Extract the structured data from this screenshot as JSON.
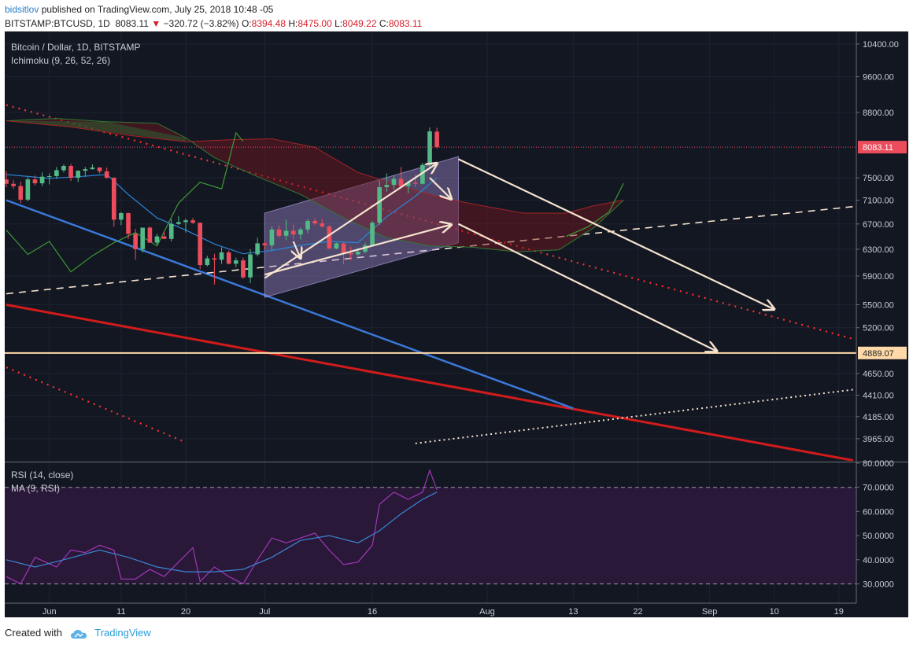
{
  "header": {
    "user": "bidsitlov",
    "published": "published on TradingView.com, July 25, 2018 10:48 -05",
    "symbol": "BITSTAMP:BTCUSD, 1D",
    "last": "8083.11",
    "change_arrow": "▼",
    "change": "−320.72 (−3.82%)",
    "o_label": "O:",
    "o_value": "8394.48",
    "h_label": "H:",
    "h_value": "8475.00",
    "l_label": "L:",
    "l_value": "8049.22",
    "c_label": "C:",
    "c_value": "8083.11"
  },
  "legend": {
    "main": "Bitcoin / Dollar, 1D, BITSTAMP",
    "indicator": "Ichimoku (9, 26, 52, 26)",
    "rsi": "RSI (14, close)",
    "ma": "MA (9, RSI)"
  },
  "footer": {
    "created": "Created with",
    "brand": "TradingView"
  },
  "colors": {
    "background": "#131722",
    "bull": "#53b987",
    "bear": "#eb4d5c",
    "rsi": "#a037b5",
    "ma": "#3a86d4",
    "horizontal_level": "#ffd9a8",
    "blue_trend": "#3b78d8",
    "red_trend": "#d11b1b"
  },
  "chart_data": [
    {
      "type": "candlestick",
      "title": "Bitcoin / Dollar, 1D, BITSTAMP",
      "y_scale": "log",
      "ylim": [
        3800,
        10600
      ],
      "y_ticks": [
        "10400.00",
        "9600.00",
        "8800.00",
        "7500.00",
        "7100.00",
        "6700.00",
        "6300.00",
        "5900.00",
        "5500.00",
        "5200.00",
        "4650.00",
        "4410.00",
        "4185.00",
        "3965.00"
      ],
      "x_ticks": [
        {
          "label": "Jun",
          "date": "2018-06-01"
        },
        {
          "label": "11",
          "date": "2018-06-11"
        },
        {
          "label": "20",
          "date": "2018-06-20"
        },
        {
          "label": "Jul",
          "date": "2018-07-01"
        },
        {
          "label": "16",
          "date": "2018-07-16"
        },
        {
          "label": "Aug",
          "date": "2018-08-01"
        },
        {
          "label": "13",
          "date": "2018-08-13"
        },
        {
          "label": "22",
          "date": "2018-08-22"
        },
        {
          "label": "Sep",
          "date": "2018-09-01"
        },
        {
          "label": "10",
          "date": "2018-09-10"
        },
        {
          "label": "19",
          "date": "2018-09-19"
        }
      ],
      "xlim": [
        "2018-05-26",
        "2018-09-21"
      ],
      "price_labels": [
        {
          "label": "8083.11",
          "value": 8083.11,
          "color": "#eb4d5c"
        },
        {
          "label": "4889.07",
          "value": 4889.07,
          "color": "#ffd9a8"
        }
      ],
      "horizontal_level": 4889.07,
      "candles": [
        {
          "date": "2018-05-26",
          "o": 7470,
          "h": 7620,
          "l": 7330,
          "c": 7390
        },
        {
          "date": "2018-05-27",
          "o": 7390,
          "h": 7460,
          "l": 7300,
          "c": 7350
        },
        {
          "date": "2018-05-28",
          "o": 7350,
          "h": 7430,
          "l": 7050,
          "c": 7110
        },
        {
          "date": "2018-05-29",
          "o": 7110,
          "h": 7510,
          "l": 7080,
          "c": 7470
        },
        {
          "date": "2018-05-30",
          "o": 7470,
          "h": 7540,
          "l": 7360,
          "c": 7400
        },
        {
          "date": "2018-05-31",
          "o": 7400,
          "h": 7600,
          "l": 7350,
          "c": 7520
        },
        {
          "date": "2018-06-01",
          "o": 7520,
          "h": 7580,
          "l": 7380,
          "c": 7530
        },
        {
          "date": "2018-06-02",
          "o": 7530,
          "h": 7700,
          "l": 7480,
          "c": 7640
        },
        {
          "date": "2018-06-03",
          "o": 7640,
          "h": 7750,
          "l": 7600,
          "c": 7720
        },
        {
          "date": "2018-06-04",
          "o": 7720,
          "h": 7760,
          "l": 7440,
          "c": 7500
        },
        {
          "date": "2018-06-05",
          "o": 7500,
          "h": 7640,
          "l": 7420,
          "c": 7630
        },
        {
          "date": "2018-06-06",
          "o": 7630,
          "h": 7700,
          "l": 7520,
          "c": 7660
        },
        {
          "date": "2018-06-07",
          "o": 7660,
          "h": 7750,
          "l": 7650,
          "c": 7690
        },
        {
          "date": "2018-06-08",
          "o": 7690,
          "h": 7700,
          "l": 7580,
          "c": 7620
        },
        {
          "date": "2018-06-09",
          "o": 7620,
          "h": 7690,
          "l": 7480,
          "c": 7500
        },
        {
          "date": "2018-06-10",
          "o": 7500,
          "h": 7510,
          "l": 6650,
          "c": 6770
        },
        {
          "date": "2018-06-11",
          "o": 6770,
          "h": 6900,
          "l": 6680,
          "c": 6880
        },
        {
          "date": "2018-06-12",
          "o": 6880,
          "h": 6890,
          "l": 6460,
          "c": 6540
        },
        {
          "date": "2018-06-13",
          "o": 6540,
          "h": 6620,
          "l": 6140,
          "c": 6300
        },
        {
          "date": "2018-06-14",
          "o": 6300,
          "h": 6640,
          "l": 6250,
          "c": 6640
        },
        {
          "date": "2018-06-15",
          "o": 6640,
          "h": 6660,
          "l": 6400,
          "c": 6400
        },
        {
          "date": "2018-06-16",
          "o": 6400,
          "h": 6540,
          "l": 6370,
          "c": 6500
        },
        {
          "date": "2018-06-17",
          "o": 6500,
          "h": 6580,
          "l": 6460,
          "c": 6460
        },
        {
          "date": "2018-06-18",
          "o": 6460,
          "h": 6780,
          "l": 6420,
          "c": 6700
        },
        {
          "date": "2018-06-19",
          "o": 6700,
          "h": 6830,
          "l": 6680,
          "c": 6730
        },
        {
          "date": "2018-06-20",
          "o": 6730,
          "h": 6790,
          "l": 6560,
          "c": 6760
        },
        {
          "date": "2018-06-21",
          "o": 6760,
          "h": 6800,
          "l": 6700,
          "c": 6720
        },
        {
          "date": "2018-06-22",
          "o": 6720,
          "h": 6720,
          "l": 6000,
          "c": 6060
        },
        {
          "date": "2018-06-23",
          "o": 6060,
          "h": 6200,
          "l": 6040,
          "c": 6160
        },
        {
          "date": "2018-06-24",
          "o": 6160,
          "h": 6230,
          "l": 5780,
          "c": 6140
        },
        {
          "date": "2018-06-25",
          "o": 6140,
          "h": 6330,
          "l": 6080,
          "c": 6250
        },
        {
          "date": "2018-06-26",
          "o": 6250,
          "h": 6280,
          "l": 6070,
          "c": 6080
        },
        {
          "date": "2018-06-27",
          "o": 6080,
          "h": 6170,
          "l": 6030,
          "c": 6130
        },
        {
          "date": "2018-06-28",
          "o": 6130,
          "h": 6170,
          "l": 5860,
          "c": 5880
        },
        {
          "date": "2018-06-29",
          "o": 5880,
          "h": 6300,
          "l": 5800,
          "c": 6220
        },
        {
          "date": "2018-06-30",
          "o": 6220,
          "h": 6480,
          "l": 6190,
          "c": 6390
        },
        {
          "date": "2018-07-01",
          "o": 6390,
          "h": 6420,
          "l": 6290,
          "c": 6360
        },
        {
          "date": "2018-07-02",
          "o": 6360,
          "h": 6660,
          "l": 6290,
          "c": 6610
        },
        {
          "date": "2018-07-03",
          "o": 6610,
          "h": 6680,
          "l": 6480,
          "c": 6510
        },
        {
          "date": "2018-07-04",
          "o": 6510,
          "h": 6770,
          "l": 6440,
          "c": 6590
        },
        {
          "date": "2018-07-05",
          "o": 6590,
          "h": 6690,
          "l": 6450,
          "c": 6530
        },
        {
          "date": "2018-07-06",
          "o": 6530,
          "h": 6640,
          "l": 6450,
          "c": 6610
        },
        {
          "date": "2018-07-07",
          "o": 6610,
          "h": 6780,
          "l": 6550,
          "c": 6750
        },
        {
          "date": "2018-07-08",
          "o": 6750,
          "h": 6800,
          "l": 6680,
          "c": 6710
        },
        {
          "date": "2018-07-09",
          "o": 6710,
          "h": 6790,
          "l": 6640,
          "c": 6660
        },
        {
          "date": "2018-07-10",
          "o": 6660,
          "h": 6680,
          "l": 6300,
          "c": 6310
        },
        {
          "date": "2018-07-11",
          "o": 6310,
          "h": 6400,
          "l": 6300,
          "c": 6390
        },
        {
          "date": "2018-07-12",
          "o": 6390,
          "h": 6400,
          "l": 6070,
          "c": 6240
        },
        {
          "date": "2018-07-13",
          "o": 6240,
          "h": 6340,
          "l": 6130,
          "c": 6220
        },
        {
          "date": "2018-07-14",
          "o": 6220,
          "h": 6320,
          "l": 6200,
          "c": 6260
        },
        {
          "date": "2018-07-15",
          "o": 6260,
          "h": 6400,
          "l": 6240,
          "c": 6360
        },
        {
          "date": "2018-07-16",
          "o": 6360,
          "h": 6750,
          "l": 6350,
          "c": 6720
        },
        {
          "date": "2018-07-17",
          "o": 6720,
          "h": 7450,
          "l": 6680,
          "c": 7330
        },
        {
          "date": "2018-07-18",
          "o": 7330,
          "h": 7580,
          "l": 7250,
          "c": 7370
        },
        {
          "date": "2018-07-19",
          "o": 7370,
          "h": 7550,
          "l": 7290,
          "c": 7480
        },
        {
          "date": "2018-07-20",
          "o": 7480,
          "h": 7700,
          "l": 7300,
          "c": 7350
        },
        {
          "date": "2018-07-21",
          "o": 7350,
          "h": 7450,
          "l": 7220,
          "c": 7410
        },
        {
          "date": "2018-07-22",
          "o": 7410,
          "h": 7560,
          "l": 7330,
          "c": 7390
        },
        {
          "date": "2018-07-23",
          "o": 7390,
          "h": 7780,
          "l": 7380,
          "c": 7740
        },
        {
          "date": "2018-07-24",
          "o": 7740,
          "h": 8480,
          "l": 7700,
          "c": 8400
        },
        {
          "date": "2018-07-25",
          "o": 8394.48,
          "h": 8475,
          "l": 8049.22,
          "c": 8083.11
        }
      ],
      "ichimoku": {
        "conversion": [
          [
            "2018-05-26",
            7560
          ],
          [
            "2018-06-01",
            7490
          ],
          [
            "2018-06-05",
            7520
          ],
          [
            "2018-06-09",
            7560
          ],
          [
            "2018-06-12",
            7200
          ],
          [
            "2018-06-16",
            6800
          ],
          [
            "2018-06-20",
            6600
          ],
          [
            "2018-06-24",
            6380
          ],
          [
            "2018-06-28",
            6230
          ],
          [
            "2018-07-02",
            6280
          ],
          [
            "2018-07-06",
            6360
          ],
          [
            "2018-07-10",
            6420
          ],
          [
            "2018-07-14",
            6400
          ],
          [
            "2018-07-18",
            6820
          ],
          [
            "2018-07-22",
            7170
          ],
          [
            "2018-07-25",
            7500
          ]
        ],
        "lagging": [
          [
            "2018-05-26",
            6600
          ],
          [
            "2018-05-29",
            6220
          ],
          [
            "2018-06-01",
            6420
          ],
          [
            "2018-06-04",
            5960
          ],
          [
            "2018-06-07",
            6200
          ],
          [
            "2018-06-10",
            6400
          ],
          [
            "2018-06-13",
            6560
          ],
          [
            "2018-06-16",
            6350
          ],
          [
            "2018-06-19",
            7050
          ],
          [
            "2018-06-22",
            7420
          ],
          [
            "2018-06-25",
            7300
          ],
          [
            "2018-06-27",
            8370
          ],
          [
            "2018-06-28",
            8200
          ]
        ],
        "lagging2": [
          [
            "2018-08-12",
            6500
          ],
          [
            "2018-08-15",
            6650
          ],
          [
            "2018-08-18",
            6900
          ],
          [
            "2018-08-20",
            7400
          ]
        ],
        "span_a": [
          [
            "2018-05-26",
            8620
          ],
          [
            "2018-06-02",
            8670
          ],
          [
            "2018-06-09",
            8600
          ],
          [
            "2018-06-16",
            8570
          ],
          [
            "2018-06-20",
            8270
          ],
          [
            "2018-06-24",
            7880
          ],
          [
            "2018-06-30",
            7520
          ],
          [
            "2018-07-06",
            7200
          ],
          [
            "2018-07-12",
            6800
          ],
          [
            "2018-07-18",
            6480
          ],
          [
            "2018-07-24",
            6350
          ],
          [
            "2018-07-30",
            6330
          ],
          [
            "2018-08-05",
            6260
          ],
          [
            "2018-08-11",
            6290
          ],
          [
            "2018-08-16",
            6650
          ],
          [
            "2018-08-20",
            7100
          ]
        ],
        "span_b": [
          [
            "2018-05-26",
            8620
          ],
          [
            "2018-06-04",
            8490
          ],
          [
            "2018-06-12",
            8320
          ],
          [
            "2018-06-20",
            8190
          ],
          [
            "2018-06-26",
            8230
          ],
          [
            "2018-07-02",
            8250
          ],
          [
            "2018-07-08",
            8080
          ],
          [
            "2018-07-14",
            7600
          ],
          [
            "2018-07-20",
            7350
          ],
          [
            "2018-07-26",
            7130
          ],
          [
            "2018-08-01",
            6990
          ],
          [
            "2018-08-06",
            6880
          ],
          [
            "2018-08-12",
            6880
          ],
          [
            "2018-08-16",
            7010
          ],
          [
            "2018-08-20",
            7100
          ]
        ]
      },
      "channel_polygon": [
        [
          "2018-07-01",
          5600
        ],
        [
          "2018-07-01",
          6880
        ],
        [
          "2018-07-28",
          7900
        ],
        [
          "2018-07-28",
          6400
        ]
      ]
    },
    {
      "type": "line",
      "title": "RSI (14, close)",
      "ylim": [
        22,
        80
      ],
      "y_ticks": [
        "80.0000",
        "70.0000",
        "60.0000",
        "50.0000",
        "40.0000",
        "30.0000"
      ],
      "bands": [
        70,
        30
      ],
      "series": [
        {
          "name": "RSI (14, close)",
          "x": [
            "2018-05-26",
            "2018-05-28",
            "2018-05-30",
            "2018-06-02",
            "2018-06-04",
            "2018-06-06",
            "2018-06-08",
            "2018-06-10",
            "2018-06-11",
            "2018-06-13",
            "2018-06-15",
            "2018-06-17",
            "2018-06-19",
            "2018-06-21",
            "2018-06-22",
            "2018-06-24",
            "2018-06-26",
            "2018-06-28",
            "2018-06-30",
            "2018-07-02",
            "2018-07-04",
            "2018-07-06",
            "2018-07-08",
            "2018-07-10",
            "2018-07-12",
            "2018-07-14",
            "2018-07-16",
            "2018-07-17",
            "2018-07-19",
            "2018-07-21",
            "2018-07-23",
            "2018-07-24",
            "2018-07-25"
          ],
          "values": [
            33,
            30,
            41,
            37,
            44,
            43,
            46,
            44,
            32,
            32,
            36,
            33,
            39,
            45,
            31,
            37,
            33,
            30,
            40,
            49,
            47,
            49,
            51,
            44,
            38,
            39,
            46,
            63,
            68,
            65,
            68,
            77,
            69
          ]
        },
        {
          "name": "MA (9, RSI)",
          "x": [
            "2018-05-26",
            "2018-05-30",
            "2018-06-03",
            "2018-06-08",
            "2018-06-12",
            "2018-06-16",
            "2018-06-20",
            "2018-06-24",
            "2018-06-28",
            "2018-07-02",
            "2018-07-06",
            "2018-07-10",
            "2018-07-14",
            "2018-07-17",
            "2018-07-20",
            "2018-07-23",
            "2018-07-25"
          ],
          "values": [
            40,
            37,
            40,
            44,
            41,
            37,
            35,
            35,
            36,
            41,
            48,
            50,
            47,
            52,
            59,
            65,
            68
          ]
        }
      ]
    }
  ]
}
